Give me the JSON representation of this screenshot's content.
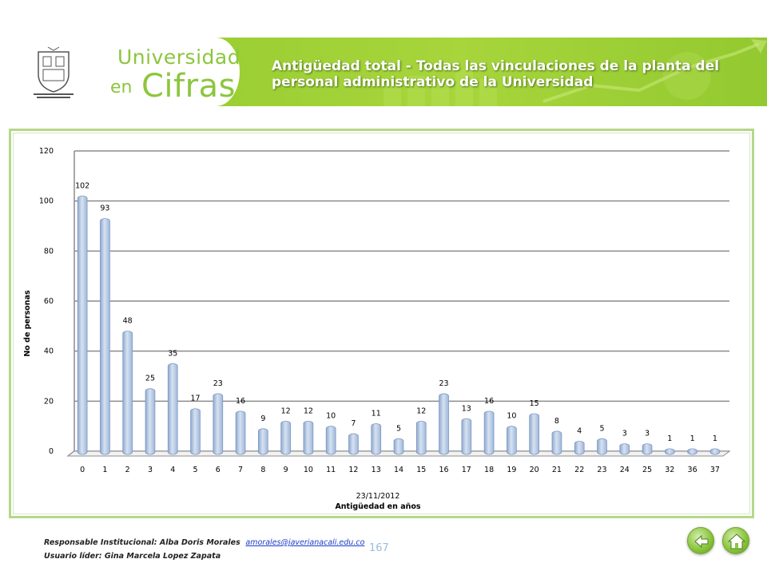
{
  "header": {
    "brand_line1": "Universidad",
    "brand_line2_small": "en",
    "brand_line2_big": "Cifras",
    "title_line1": "Antigüedad total - Todas las vinculaciones de la planta del",
    "title_line2": "personal administrativo de la Universidad",
    "colors": {
      "banner": "#9ccf34",
      "brand": "#8cc63e"
    }
  },
  "chart_data": {
    "type": "bar",
    "title": "",
    "xlabel_line1": "23/11/2012",
    "xlabel_line2": "Antigüedad en años",
    "ylabel": "No de personas",
    "ylim": [
      0,
      120
    ],
    "yticks": [
      0,
      20,
      40,
      60,
      80,
      100,
      120
    ],
    "grid": true,
    "legend": "none",
    "categories": [
      "0",
      "1",
      "2",
      "3",
      "4",
      "5",
      "6",
      "7",
      "8",
      "9",
      "10",
      "11",
      "12",
      "13",
      "14",
      "15",
      "16",
      "17",
      "18",
      "19",
      "20",
      "21",
      "22",
      "23",
      "24",
      "25",
      "32",
      "36",
      "37"
    ],
    "values": [
      102,
      93,
      48,
      25,
      35,
      17,
      23,
      16,
      9,
      12,
      12,
      10,
      7,
      11,
      5,
      12,
      23,
      13,
      16,
      10,
      15,
      8,
      4,
      5,
      3,
      3,
      1,
      1,
      1
    ],
    "bar_color": "#b8cce4"
  },
  "footer": {
    "responsible_label": "Responsable Institucional: Alba Doris Morales",
    "email": "amorales@javerianacali.edu.co",
    "leader_label": "Usuario líder: Gina Marcela Lopez Zapata",
    "page_number": "167"
  },
  "nav": {
    "back_icon": "arrow-left-icon",
    "home_icon": "house-icon"
  }
}
